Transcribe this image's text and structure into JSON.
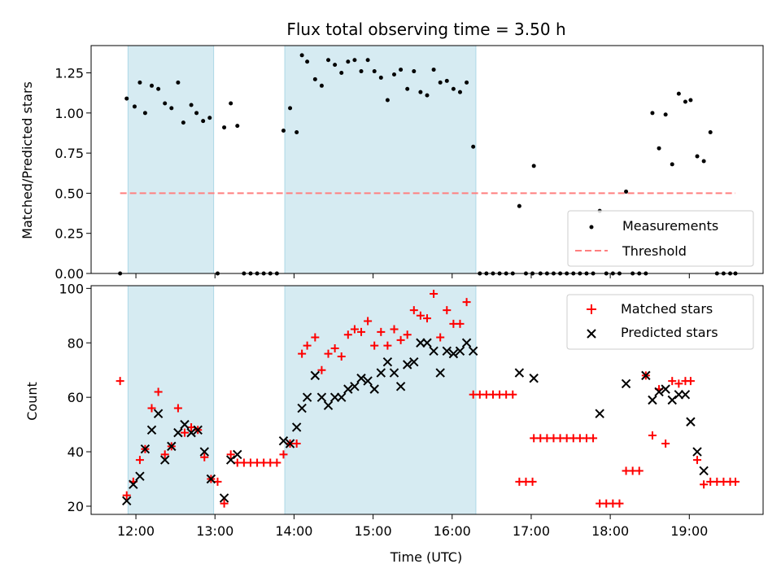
{
  "chart_data": [
    {
      "type": "scatter",
      "title": "Flux total observing time = 3.50 h",
      "xlabel": "",
      "ylabel": "Matched/Predicted stars",
      "xlim": [
        "11:26",
        "19:56"
      ],
      "ylim": [
        0,
        1.42
      ],
      "y_ticks": [
        "0.00",
        "0.25",
        "0.50",
        "0.75",
        "1.00",
        "1.25"
      ],
      "x_ticks": [
        "12:00",
        "13:00",
        "14:00",
        "15:00",
        "16:00",
        "17:00",
        "18:00",
        "19:00"
      ],
      "shaded_intervals": [
        [
          "11:54",
          "12:59"
        ],
        [
          "13:53",
          "16:18"
        ]
      ],
      "legend_position": "lower right",
      "series": [
        {
          "name": "Measurements",
          "marker": "dot",
          "color": "#000000",
          "points": [
            [
              "11:48",
              0.0
            ],
            [
              "11:53",
              1.09
            ],
            [
              "11:59",
              1.04
            ],
            [
              "12:03",
              1.19
            ],
            [
              "12:07",
              1.0
            ],
            [
              "12:12",
              1.17
            ],
            [
              "12:17",
              1.15
            ],
            [
              "12:22",
              1.06
            ],
            [
              "12:27",
              1.03
            ],
            [
              "12:32",
              1.19
            ],
            [
              "12:36",
              0.94
            ],
            [
              "12:42",
              1.05
            ],
            [
              "12:46",
              1.0
            ],
            [
              "12:51",
              0.95
            ],
            [
              "12:56",
              0.97
            ],
            [
              "13:02",
              0.0
            ],
            [
              "13:07",
              0.91
            ],
            [
              "13:12",
              1.06
            ],
            [
              "13:17",
              0.92
            ],
            [
              "13:22",
              0.0
            ],
            [
              "13:27",
              0.0
            ],
            [
              "13:32",
              0.0
            ],
            [
              "13:37",
              0.0
            ],
            [
              "13:42",
              0.0
            ],
            [
              "13:47",
              0.0
            ],
            [
              "13:52",
              0.89
            ],
            [
              "13:57",
              1.03
            ],
            [
              "14:02",
              0.88
            ],
            [
              "14:06",
              1.36
            ],
            [
              "14:10",
              1.32
            ],
            [
              "14:16",
              1.21
            ],
            [
              "14:21",
              1.17
            ],
            [
              "14:26",
              1.33
            ],
            [
              "14:31",
              1.3
            ],
            [
              "14:36",
              1.25
            ],
            [
              "14:41",
              1.32
            ],
            [
              "14:46",
              1.33
            ],
            [
              "14:51",
              1.26
            ],
            [
              "14:56",
              1.33
            ],
            [
              "15:01",
              1.26
            ],
            [
              "15:06",
              1.22
            ],
            [
              "15:11",
              1.08
            ],
            [
              "15:16",
              1.24
            ],
            [
              "15:21",
              1.27
            ],
            [
              "15:26",
              1.15
            ],
            [
              "15:31",
              1.26
            ],
            [
              "15:36",
              1.13
            ],
            [
              "15:41",
              1.11
            ],
            [
              "15:46",
              1.27
            ],
            [
              "15:51",
              1.19
            ],
            [
              "15:56",
              1.2
            ],
            [
              "16:01",
              1.15
            ],
            [
              "16:06",
              1.13
            ],
            [
              "16:11",
              1.19
            ],
            [
              "16:16",
              0.79
            ],
            [
              "16:21",
              0.0
            ],
            [
              "16:26",
              0.0
            ],
            [
              "16:31",
              0.0
            ],
            [
              "16:36",
              0.0
            ],
            [
              "16:41",
              0.0
            ],
            [
              "16:46",
              0.0
            ],
            [
              "16:51",
              0.42
            ],
            [
              "16:56",
              0.0
            ],
            [
              "17:01",
              0.0
            ],
            [
              "17:02",
              0.67
            ],
            [
              "17:07",
              0.0
            ],
            [
              "17:12",
              0.0
            ],
            [
              "17:17",
              0.0
            ],
            [
              "17:22",
              0.0
            ],
            [
              "17:27",
              0.0
            ],
            [
              "17:32",
              0.0
            ],
            [
              "17:37",
              0.0
            ],
            [
              "17:42",
              0.0
            ],
            [
              "17:47",
              0.0
            ],
            [
              "17:52",
              0.39
            ],
            [
              "17:57",
              0.0
            ],
            [
              "18:02",
              0.0
            ],
            [
              "18:07",
              0.0
            ],
            [
              "18:12",
              0.51
            ],
            [
              "18:17",
              0.0
            ],
            [
              "18:22",
              0.0
            ],
            [
              "18:27",
              0.0
            ],
            [
              "18:32",
              1.0
            ],
            [
              "18:37",
              0.78
            ],
            [
              "18:42",
              0.99
            ],
            [
              "18:47",
              0.68
            ],
            [
              "18:52",
              1.12
            ],
            [
              "18:57",
              1.07
            ],
            [
              "19:01",
              1.08
            ],
            [
              "19:06",
              0.73
            ],
            [
              "19:11",
              0.7
            ],
            [
              "19:16",
              0.88
            ],
            [
              "19:21",
              0.0
            ],
            [
              "19:26",
              0.0
            ],
            [
              "19:31",
              0.0
            ],
            [
              "19:35",
              0.0
            ]
          ]
        },
        {
          "name": "Threshold",
          "style": "dashed",
          "color": "#ff7f7f",
          "x": [
            "11:48",
            "19:35"
          ],
          "y": [
            0.5,
            0.5
          ]
        }
      ]
    },
    {
      "type": "scatter",
      "title": "",
      "xlabel": "Time (UTC)",
      "ylabel": "Count",
      "xlim": [
        "11:26",
        "19:56"
      ],
      "ylim": [
        17,
        101
      ],
      "y_ticks": [
        "20",
        "40",
        "60",
        "80",
        "100"
      ],
      "x_ticks": [
        "12:00",
        "13:00",
        "14:00",
        "15:00",
        "16:00",
        "17:00",
        "18:00",
        "19:00"
      ],
      "shaded_intervals": [
        [
          "11:54",
          "12:59"
        ],
        [
          "13:53",
          "16:18"
        ]
      ],
      "legend_position": "upper right",
      "series": [
        {
          "name": "Matched stars",
          "marker": "plus",
          "color": "#ff0000",
          "points": [
            [
              "11:48",
              66
            ],
            [
              "11:53",
              24
            ],
            [
              "11:58",
              29
            ],
            [
              "12:03",
              37
            ],
            [
              "12:07",
              41
            ],
            [
              "12:12",
              56
            ],
            [
              "12:17",
              62
            ],
            [
              "12:22",
              39
            ],
            [
              "12:27",
              42
            ],
            [
              "12:32",
              56
            ],
            [
              "12:37",
              47
            ],
            [
              "12:42",
              49
            ],
            [
              "12:47",
              48
            ],
            [
              "12:52",
              38
            ],
            [
              "12:57",
              30
            ],
            [
              "13:02",
              29
            ],
            [
              "13:07",
              21
            ],
            [
              "13:12",
              39
            ],
            [
              "13:17",
              36
            ],
            [
              "13:22",
              36
            ],
            [
              "13:27",
              36
            ],
            [
              "13:32",
              36
            ],
            [
              "13:37",
              36
            ],
            [
              "13:42",
              36
            ],
            [
              "13:47",
              36
            ],
            [
              "13:52",
              39
            ],
            [
              "13:57",
              43
            ],
            [
              "14:02",
              43
            ],
            [
              "14:06",
              76
            ],
            [
              "14:10",
              79
            ],
            [
              "14:16",
              82
            ],
            [
              "14:21",
              70
            ],
            [
              "14:26",
              76
            ],
            [
              "14:31",
              78
            ],
            [
              "14:36",
              75
            ],
            [
              "14:41",
              83
            ],
            [
              "14:46",
              85
            ],
            [
              "14:51",
              84
            ],
            [
              "14:56",
              88
            ],
            [
              "15:01",
              79
            ],
            [
              "15:06",
              84
            ],
            [
              "15:11",
              79
            ],
            [
              "15:16",
              85
            ],
            [
              "15:21",
              81
            ],
            [
              "15:26",
              83
            ],
            [
              "15:31",
              92
            ],
            [
              "15:36",
              90
            ],
            [
              "15:41",
              89
            ],
            [
              "15:46",
              98
            ],
            [
              "15:51",
              82
            ],
            [
              "15:56",
              92
            ],
            [
              "16:01",
              87
            ],
            [
              "16:06",
              87
            ],
            [
              "16:11",
              95
            ],
            [
              "16:16",
              61
            ],
            [
              "16:21",
              61
            ],
            [
              "16:26",
              61
            ],
            [
              "16:31",
              61
            ],
            [
              "16:36",
              61
            ],
            [
              "16:41",
              61
            ],
            [
              "16:46",
              61
            ],
            [
              "16:51",
              29
            ],
            [
              "16:56",
              29
            ],
            [
              "17:01",
              29
            ],
            [
              "17:02",
              45
            ],
            [
              "17:07",
              45
            ],
            [
              "17:12",
              45
            ],
            [
              "17:17",
              45
            ],
            [
              "17:22",
              45
            ],
            [
              "17:27",
              45
            ],
            [
              "17:32",
              45
            ],
            [
              "17:37",
              45
            ],
            [
              "17:42",
              45
            ],
            [
              "17:47",
              45
            ],
            [
              "17:52",
              21
            ],
            [
              "17:57",
              21
            ],
            [
              "18:02",
              21
            ],
            [
              "18:07",
              21
            ],
            [
              "18:12",
              33
            ],
            [
              "18:17",
              33
            ],
            [
              "18:22",
              33
            ],
            [
              "18:27",
              68
            ],
            [
              "18:32",
              46
            ],
            [
              "18:37",
              63
            ],
            [
              "18:42",
              43
            ],
            [
              "18:47",
              66
            ],
            [
              "18:52",
              65
            ],
            [
              "18:57",
              66
            ],
            [
              "19:01",
              66
            ],
            [
              "19:06",
              37
            ],
            [
              "19:11",
              28
            ],
            [
              "19:16",
              29
            ],
            [
              "19:21",
              29
            ],
            [
              "19:26",
              29
            ],
            [
              "19:31",
              29
            ],
            [
              "19:35",
              29
            ]
          ]
        },
        {
          "name": "Predicted stars",
          "marker": "x",
          "color": "#000000",
          "points": [
            [
              "11:53",
              22
            ],
            [
              "11:58",
              28
            ],
            [
              "12:03",
              31
            ],
            [
              "12:07",
              41
            ],
            [
              "12:12",
              48
            ],
            [
              "12:17",
              54
            ],
            [
              "12:22",
              37
            ],
            [
              "12:27",
              42
            ],
            [
              "12:32",
              47
            ],
            [
              "12:37",
              50
            ],
            [
              "12:42",
              47
            ],
            [
              "12:47",
              48
            ],
            [
              "12:52",
              40
            ],
            [
              "12:57",
              30
            ],
            [
              "13:07",
              23
            ],
            [
              "13:12",
              37
            ],
            [
              "13:17",
              39
            ],
            [
              "13:52",
              44
            ],
            [
              "13:57",
              43
            ],
            [
              "14:02",
              49
            ],
            [
              "14:06",
              56
            ],
            [
              "14:10",
              60
            ],
            [
              "14:16",
              68
            ],
            [
              "14:21",
              60
            ],
            [
              "14:26",
              57
            ],
            [
              "14:31",
              60
            ],
            [
              "14:36",
              60
            ],
            [
              "14:41",
              63
            ],
            [
              "14:46",
              64
            ],
            [
              "14:51",
              67
            ],
            [
              "14:56",
              66
            ],
            [
              "15:01",
              63
            ],
            [
              "15:06",
              69
            ],
            [
              "15:11",
              73
            ],
            [
              "15:16",
              69
            ],
            [
              "15:21",
              64
            ],
            [
              "15:26",
              72
            ],
            [
              "15:31",
              73
            ],
            [
              "15:36",
              80
            ],
            [
              "15:41",
              80
            ],
            [
              "15:46",
              77
            ],
            [
              "15:51",
              69
            ],
            [
              "15:56",
              77
            ],
            [
              "16:01",
              76
            ],
            [
              "16:06",
              77
            ],
            [
              "16:11",
              80
            ],
            [
              "16:16",
              77
            ],
            [
              "16:51",
              69
            ],
            [
              "17:02",
              67
            ],
            [
              "17:52",
              54
            ],
            [
              "18:12",
              65
            ],
            [
              "18:27",
              68
            ],
            [
              "18:32",
              59
            ],
            [
              "18:37",
              62
            ],
            [
              "18:42",
              63
            ],
            [
              "18:47",
              59
            ],
            [
              "18:52",
              61
            ],
            [
              "18:57",
              61
            ],
            [
              "19:01",
              51
            ],
            [
              "19:06",
              40
            ],
            [
              "19:11",
              33
            ]
          ]
        }
      ]
    }
  ]
}
